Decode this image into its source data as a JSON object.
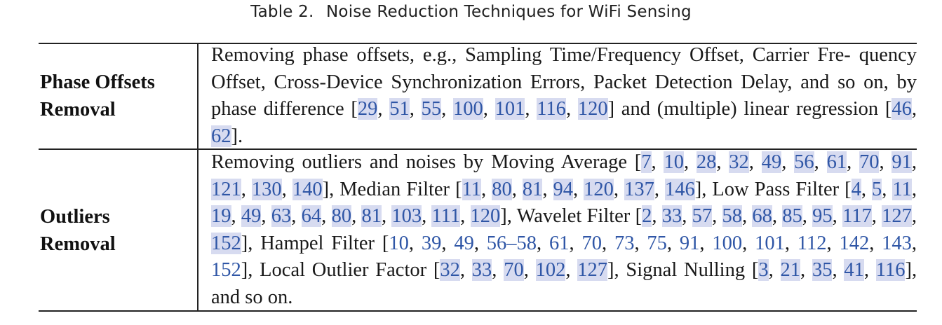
{
  "caption": {
    "label": "Table 2.",
    "title": "Noise Reduction Techniques for WiFi Sensing"
  },
  "rows": [
    {
      "header": [
        "Phase Offsets",
        "Removal"
      ],
      "segments": [
        {
          "t": "Removing phase offsets, e.g., Sampling Time/Frequency Offset, Carrier Fre- quency Offset, Cross-Device Synchronization Errors, Packet Detection Delay, and so on, by phase difference "
        },
        {
          "cites": [
            "29",
            "51",
            "55",
            "100",
            "101",
            "116",
            "120"
          ]
        },
        {
          "t": " and (multiple) linear regression "
        },
        {
          "cites": [
            "46",
            "62"
          ]
        },
        {
          "t": "."
        }
      ]
    },
    {
      "header": [
        "Outliers",
        "Removal"
      ],
      "segments": [
        {
          "t": "Removing outliers and noises by Moving Average "
        },
        {
          "cites": [
            "7",
            "10",
            "28",
            "32",
            "49",
            "56",
            "61",
            "70",
            "91",
            "121",
            "130",
            "140"
          ]
        },
        {
          "t": ", Median Filter "
        },
        {
          "cites": [
            "11",
            "80",
            "81",
            "94",
            "120",
            "137",
            "146"
          ]
        },
        {
          "t": ", Low Pass Filter "
        },
        {
          "cites": [
            "4",
            "5",
            "11",
            "19",
            "49",
            "63",
            "64",
            "80",
            "81",
            "103",
            "111",
            "120"
          ]
        },
        {
          "t": ", Wavelet Filter "
        },
        {
          "cites": [
            "2",
            "33",
            "57",
            "58",
            "68",
            "85",
            "95",
            "117",
            "127",
            "152"
          ]
        },
        {
          "t": ", Hampel Filter "
        },
        {
          "cites": [
            "10",
            "39",
            "49",
            "56–58",
            "61",
            "70",
            "73",
            "75",
            "91",
            "100",
            "101",
            "112",
            "142",
            "143",
            "152"
          ],
          "plain": true
        },
        {
          "t": ", Local Outlier Factor "
        },
        {
          "cites": [
            "32",
            "33",
            "70",
            "102",
            "127"
          ]
        },
        {
          "t": ", Signal Nulling "
        },
        {
          "cites": [
            "3",
            "21",
            "35",
            "41",
            "116"
          ]
        },
        {
          "t": ", and so on."
        }
      ]
    }
  ],
  "colors": {
    "citation_text": "#2f56a6",
    "citation_highlight": "#d7dbf0",
    "rule": "#222222"
  }
}
